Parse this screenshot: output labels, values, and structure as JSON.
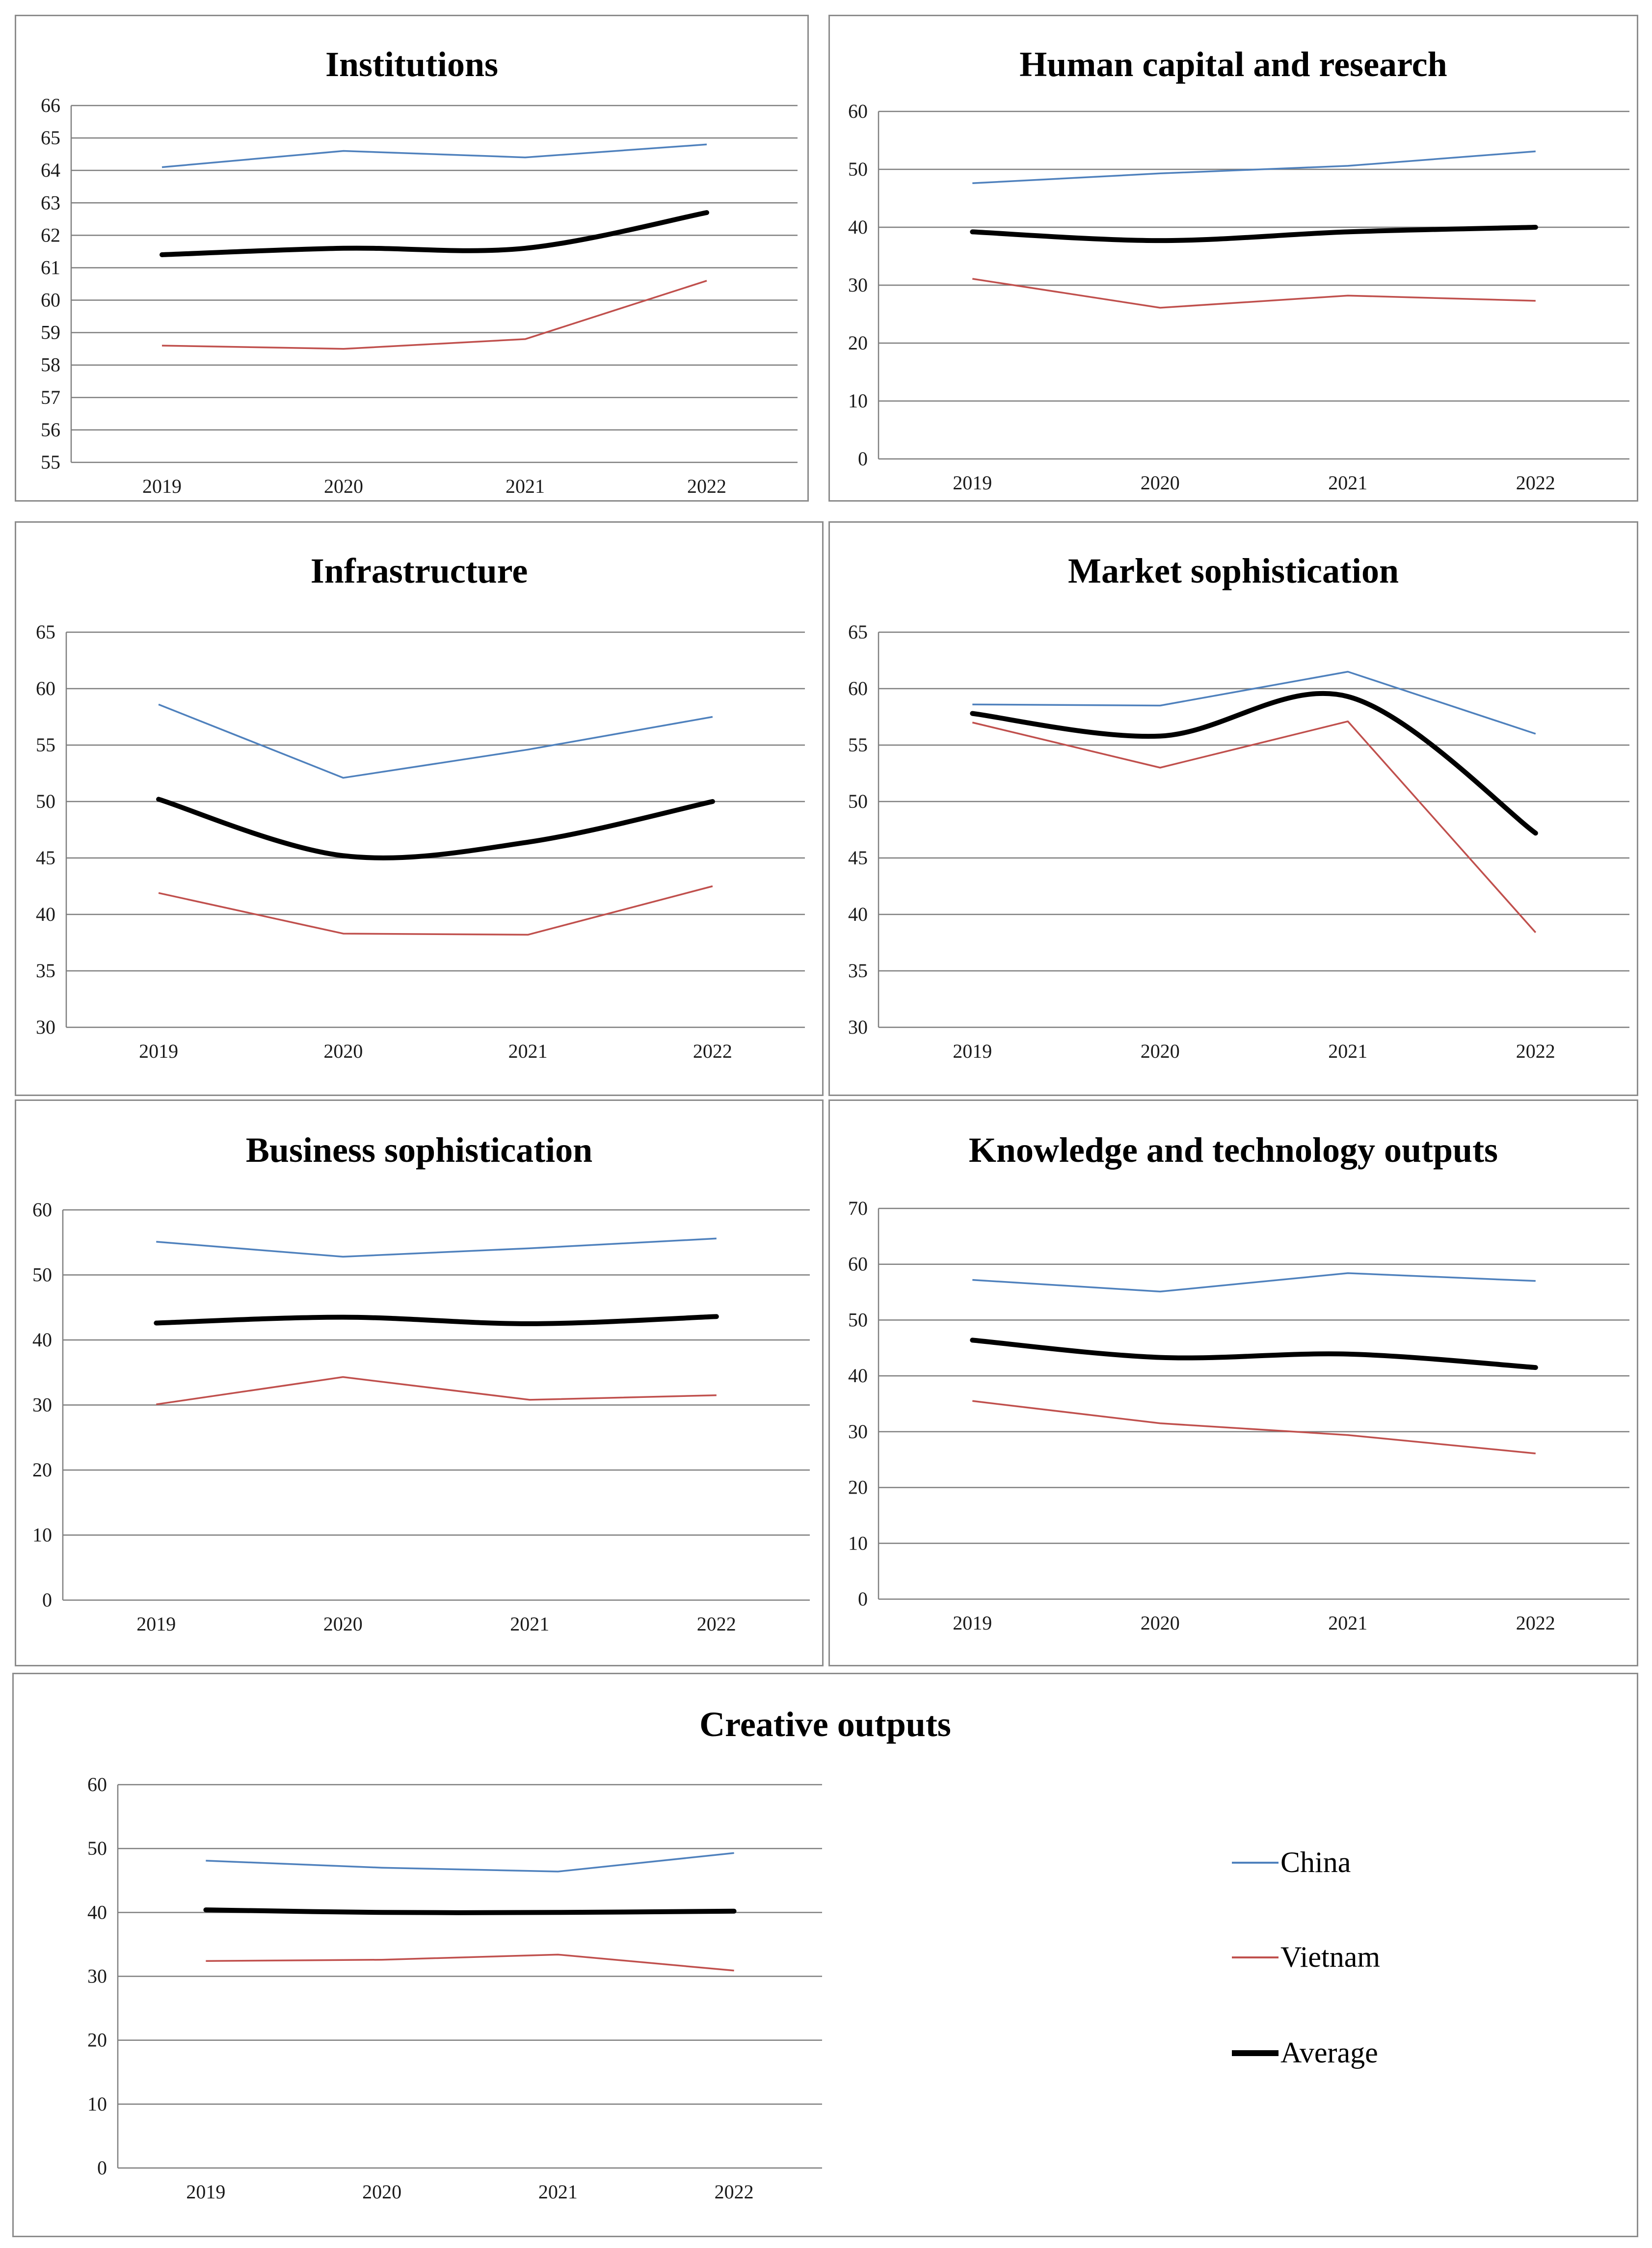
{
  "legend": [
    {
      "name": "China",
      "color": "#4F81BD"
    },
    {
      "name": "Vietnam",
      "color": "#C0504D"
    },
    {
      "name": "Average",
      "color": "#000000"
    }
  ],
  "chart_data": [
    {
      "type": "line",
      "title": "Institutions",
      "categories": [
        "2019",
        "2020",
        "2021",
        "2022"
      ],
      "ylim": [
        55,
        66
      ],
      "yticks": [
        "55",
        "56",
        "57",
        "58",
        "59",
        "60",
        "61",
        "62",
        "63",
        "64",
        "65",
        "66"
      ],
      "series": [
        {
          "name": "China",
          "values": [
            64.1,
            64.6,
            64.4,
            64.8
          ]
        },
        {
          "name": "Vietnam",
          "values": [
            58.6,
            58.5,
            58.8,
            60.6
          ]
        },
        {
          "name": "Average",
          "values": [
            61.4,
            61.6,
            61.6,
            62.7
          ]
        }
      ]
    },
    {
      "type": "line",
      "title": "Human capital and research",
      "categories": [
        "2019",
        "2020",
        "2021",
        "2022"
      ],
      "ylim": [
        0,
        60
      ],
      "yticks": [
        "0",
        "10",
        "20",
        "30",
        "40",
        "50",
        "60"
      ],
      "series": [
        {
          "name": "China",
          "values": [
            47.6,
            49.3,
            50.6,
            53.1
          ]
        },
        {
          "name": "Vietnam",
          "values": [
            31.1,
            26.1,
            28.2,
            27.3
          ]
        },
        {
          "name": "Average",
          "values": [
            39.2,
            37.7,
            39.2,
            40.0
          ]
        }
      ]
    },
    {
      "type": "line",
      "title": "Infrastructure",
      "categories": [
        "2019",
        "2020",
        "2021",
        "2022"
      ],
      "ylim": [
        30,
        65
      ],
      "yticks": [
        "30",
        "35",
        "40",
        "45",
        "50",
        "55",
        "60",
        "65"
      ],
      "series": [
        {
          "name": "China",
          "values": [
            58.6,
            52.1,
            54.6,
            57.5
          ]
        },
        {
          "name": "Vietnam",
          "values": [
            41.9,
            38.3,
            38.2,
            42.5
          ]
        },
        {
          "name": "Average",
          "values": [
            50.2,
            45.2,
            46.4,
            50.0
          ]
        }
      ]
    },
    {
      "type": "line",
      "title": "Market sophistication",
      "categories": [
        "2019",
        "2020",
        "2021",
        "2022"
      ],
      "ylim": [
        30,
        65
      ],
      "yticks": [
        "30",
        "35",
        "40",
        "45",
        "50",
        "55",
        "60",
        "65"
      ],
      "series": [
        {
          "name": "China",
          "values": [
            58.6,
            58.5,
            61.5,
            56.0
          ]
        },
        {
          "name": "Vietnam",
          "values": [
            57.0,
            53.0,
            57.1,
            38.4
          ]
        },
        {
          "name": "Average",
          "values": [
            57.8,
            55.8,
            59.3,
            47.2
          ]
        }
      ]
    },
    {
      "type": "line",
      "title": "Business sophistication",
      "categories": [
        "2019",
        "2020",
        "2021",
        "2022"
      ],
      "ylim": [
        0,
        60
      ],
      "yticks": [
        "0",
        "10",
        "20",
        "30",
        "40",
        "50",
        "60"
      ],
      "series": [
        {
          "name": "China",
          "values": [
            55.1,
            52.8,
            54.1,
            55.6
          ]
        },
        {
          "name": "Vietnam",
          "values": [
            30.1,
            34.3,
            30.8,
            31.5
          ]
        },
        {
          "name": "Average",
          "values": [
            42.6,
            43.5,
            42.5,
            43.6
          ]
        }
      ]
    },
    {
      "type": "line",
      "title": "Knowledge and technology outputs",
      "categories": [
        "2019",
        "2020",
        "2021",
        "2022"
      ],
      "ylim": [
        0,
        70
      ],
      "yticks": [
        "0",
        "10",
        "20",
        "30",
        "40",
        "50",
        "60",
        "70"
      ],
      "series": [
        {
          "name": "China",
          "values": [
            57.2,
            55.1,
            58.4,
            57.0
          ]
        },
        {
          "name": "Vietnam",
          "values": [
            35.5,
            31.5,
            29.4,
            26.1
          ]
        },
        {
          "name": "Average",
          "values": [
            46.4,
            43.3,
            43.9,
            41.5
          ]
        }
      ]
    },
    {
      "type": "line",
      "title": "Creative outputs",
      "categories": [
        "2019",
        "2020",
        "2021",
        "2022"
      ],
      "ylim": [
        0,
        60
      ],
      "yticks": [
        "0",
        "10",
        "20",
        "30",
        "40",
        "50",
        "60"
      ],
      "series": [
        {
          "name": "China",
          "values": [
            48.1,
            47.0,
            46.4,
            49.3
          ]
        },
        {
          "name": "Vietnam",
          "values": [
            32.4,
            32.6,
            33.4,
            30.9
          ]
        },
        {
          "name": "Average",
          "values": [
            40.4,
            40.0,
            40.0,
            40.2
          ]
        }
      ]
    }
  ]
}
